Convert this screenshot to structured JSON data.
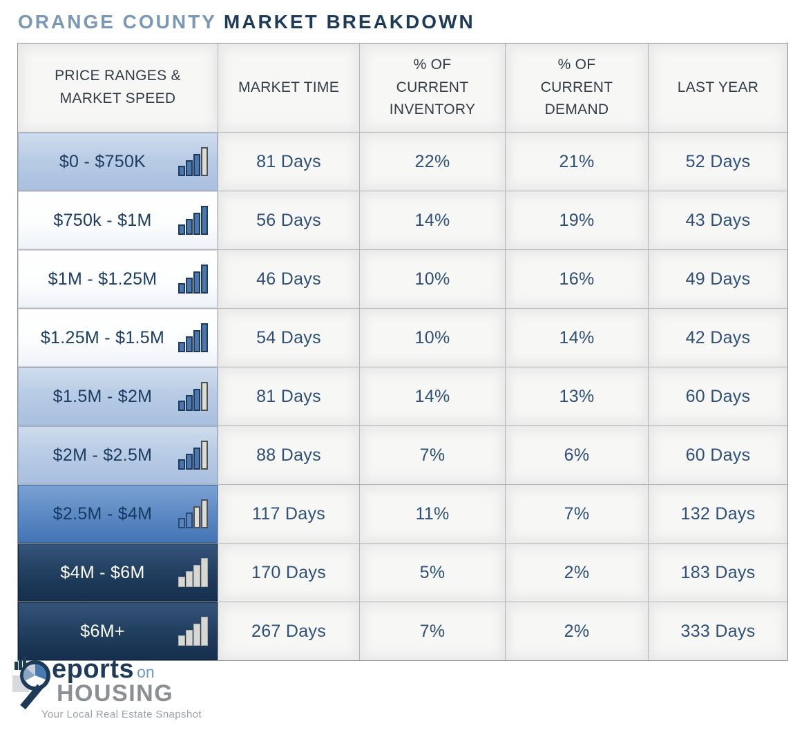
{
  "title": {
    "part1": "ORANGE COUNTY",
    "part2": "MARKET BREAKDOWN"
  },
  "table": {
    "headers": [
      {
        "lines": [
          "PRICE RANGES &",
          "MARKET SPEED"
        ]
      },
      {
        "lines": [
          "MARKET TIME"
        ]
      },
      {
        "lines": [
          "% OF",
          "CURRENT",
          "INVENTORY"
        ]
      },
      {
        "lines": [
          "% OF",
          "CURRENT",
          "DEMAND"
        ]
      },
      {
        "lines": [
          "LAST YEAR"
        ]
      }
    ],
    "rows": [
      {
        "price_range": "$0 - $750K",
        "tone": "light-blue",
        "speed_icon": {
          "name": "bar-chart-icon",
          "total_bars": 4,
          "blue_bars": 3
        },
        "market_time": "81 Days",
        "inventory": "22%",
        "demand": "21%",
        "last_year": "52 Days"
      },
      {
        "price_range": "$750k - $1M",
        "tone": "white",
        "speed_icon": {
          "name": "bar-chart-icon",
          "total_bars": 4,
          "blue_bars": 4
        },
        "market_time": "56 Days",
        "inventory": "14%",
        "demand": "19%",
        "last_year": "43 Days"
      },
      {
        "price_range": "$1M - $1.25M",
        "tone": "white",
        "speed_icon": {
          "name": "bar-chart-icon",
          "total_bars": 4,
          "blue_bars": 4
        },
        "market_time": "46 Days",
        "inventory": "10%",
        "demand": "16%",
        "last_year": "49 Days"
      },
      {
        "price_range": "$1.25M - $1.5M",
        "tone": "white",
        "speed_icon": {
          "name": "bar-chart-icon",
          "total_bars": 4,
          "blue_bars": 4
        },
        "market_time": "54 Days",
        "inventory": "10%",
        "demand": "14%",
        "last_year": "42 Days"
      },
      {
        "price_range": "$1.5M - $2M",
        "tone": "light-blue",
        "speed_icon": {
          "name": "bar-chart-icon",
          "total_bars": 4,
          "blue_bars": 3
        },
        "market_time": "81 Days",
        "inventory": "14%",
        "demand": "13%",
        "last_year": "60 Days"
      },
      {
        "price_range": "$2M - $2.5M",
        "tone": "light-blue",
        "speed_icon": {
          "name": "bar-chart-icon",
          "total_bars": 4,
          "blue_bars": 3
        },
        "market_time": "88 Days",
        "inventory": "7%",
        "demand": "6%",
        "last_year": "60 Days"
      },
      {
        "price_range": "$2.5M - $4M",
        "tone": "medium-blue",
        "speed_icon": {
          "name": "bar-chart-icon",
          "total_bars": 4,
          "blue_bars": 2
        },
        "market_time": "117 Days",
        "inventory": "11%",
        "demand": "7%",
        "last_year": "132 Days"
      },
      {
        "price_range": "$4M - $6M",
        "tone": "dark",
        "speed_icon": {
          "name": "bar-chart-icon",
          "total_bars": 4,
          "blue_bars": 0
        },
        "market_time": "170 Days",
        "inventory": "5%",
        "demand": "2%",
        "last_year": "183 Days"
      },
      {
        "price_range": "$6M+",
        "tone": "dark",
        "speed_icon": {
          "name": "bar-chart-icon",
          "total_bars": 4,
          "blue_bars": 0
        },
        "market_time": "267 Days",
        "inventory": "7%",
        "demand": "2%",
        "last_year": "333 Days"
      }
    ]
  },
  "chart_data": {
    "type": "table",
    "title": "ORANGE COUNTY MARKET BREAKDOWN",
    "columns": [
      "PRICE RANGES & MARKET SPEED",
      "MARKET TIME",
      "% OF CURRENT INVENTORY",
      "% OF CURRENT DEMAND",
      "LAST YEAR"
    ],
    "rows": [
      [
        "$0 - $750K",
        "81 Days",
        "22%",
        "21%",
        "52 Days"
      ],
      [
        "$750k - $1M",
        "56 Days",
        "14%",
        "19%",
        "43 Days"
      ],
      [
        "$1M - $1.25M",
        "46 Days",
        "10%",
        "16%",
        "49 Days"
      ],
      [
        "$1.25M - $1.5M",
        "54 Days",
        "10%",
        "14%",
        "42 Days"
      ],
      [
        "$1.5M - $2M",
        "81 Days",
        "14%",
        "13%",
        "60 Days"
      ],
      [
        "$2M - $2.5M",
        "88 Days",
        "7%",
        "6%",
        "60 Days"
      ],
      [
        "$2.5M - $4M",
        "117 Days",
        "11%",
        "7%",
        "132 Days"
      ],
      [
        "$4M - $6M",
        "170 Days",
        "5%",
        "2%",
        "183 Days"
      ],
      [
        "$6M+",
        "267 Days",
        "7%",
        "2%",
        "333 Days"
      ]
    ]
  },
  "logo": {
    "brand_part1": "eports",
    "brand_part2": "on",
    "brand_part3": "HOUSING",
    "tagline": "Your Local Real Estate Snapshot"
  },
  "colors": {
    "title_light_blue": "#7a98b6",
    "accent_navy": "#1d3b58",
    "value_text": "#2e5078",
    "bar_blue": "#4b77ac",
    "bar_gray": "#dedcd2",
    "row_light_blue": "#b9cce5",
    "row_medium_blue": "#5d8ac4",
    "row_dark_navy": "#152e4d",
    "logo_gray": "#8b8e92"
  }
}
